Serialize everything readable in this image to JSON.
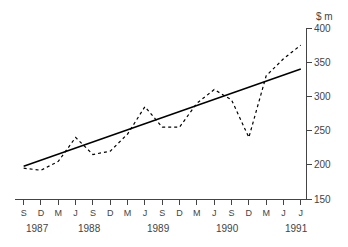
{
  "chart_data": {
    "type": "line",
    "ylabel": "$ m",
    "categories": [
      "S",
      "D",
      "M",
      "J",
      "S",
      "D",
      "M",
      "J",
      "S",
      "D",
      "M",
      "J",
      "S",
      "D",
      "M",
      "J",
      "J"
    ],
    "series": [
      {
        "line_style": "solid",
        "color": "#000000",
        "x": [
          0,
          16
        ],
        "values": [
          198,
          340
        ]
      },
      {
        "line_style": "dotted",
        "color": "#000000",
        "values": [
          195,
          192,
          205,
          240,
          215,
          220,
          245,
          285,
          255,
          255,
          290,
          310,
          295,
          240,
          330,
          355,
          375
        ]
      }
    ],
    "annotations": [
      {
        "text": "1987",
        "x": 0
      },
      {
        "text": "1988",
        "x": 3
      },
      {
        "text": "1989",
        "x": 7
      },
      {
        "text": "1990",
        "x": 11
      },
      {
        "text": "1991",
        "x": 15
      }
    ],
    "ylim": [
      150,
      400
    ],
    "yticks": [
      150,
      200,
      250,
      300,
      350,
      400
    ],
    "grid": false
  }
}
